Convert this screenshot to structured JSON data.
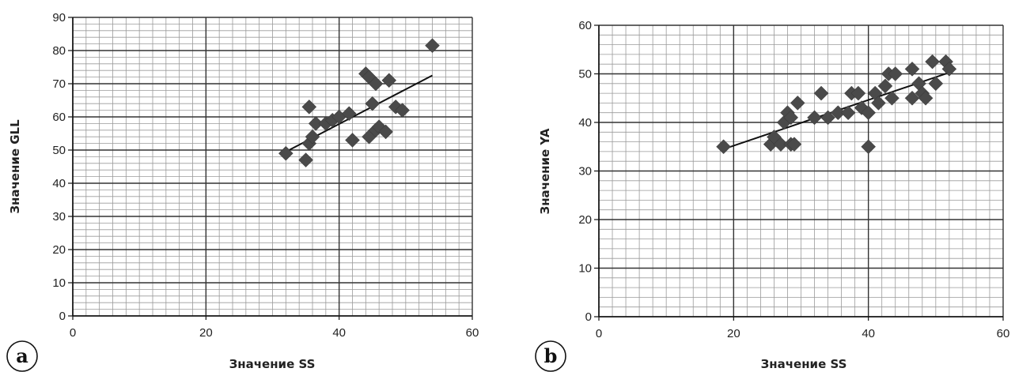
{
  "chart_data": [
    {
      "type": "scatter",
      "panel_label": "a",
      "xlabel": "Значение SS",
      "ylabel": "Значение GLL",
      "xlim": [
        0,
        60
      ],
      "ylim": [
        0,
        90
      ],
      "x_ticks": [
        0,
        20,
        40,
        60
      ],
      "y_ticks": [
        0,
        10,
        20,
        30,
        40,
        50,
        60,
        70,
        80,
        90
      ],
      "grid": true,
      "marker": "diamond",
      "points": [
        [
          32,
          49
        ],
        [
          35,
          47
        ],
        [
          35.5,
          52
        ],
        [
          35.5,
          63
        ],
        [
          36,
          54
        ],
        [
          36.5,
          58
        ],
        [
          38,
          58
        ],
        [
          39,
          59
        ],
        [
          40,
          60
        ],
        [
          41.5,
          61
        ],
        [
          42,
          53
        ],
        [
          44,
          73
        ],
        [
          44.5,
          72
        ],
        [
          44.5,
          54
        ],
        [
          45,
          64
        ],
        [
          45.5,
          70
        ],
        [
          45.5,
          56
        ],
        [
          46,
          57
        ],
        [
          47,
          55.5
        ],
        [
          47.5,
          71
        ],
        [
          48.5,
          63
        ],
        [
          49.5,
          62
        ],
        [
          54,
          81.5
        ]
      ],
      "trendline": [
        [
          32,
          49.5
        ],
        [
          54,
          72.5
        ]
      ]
    },
    {
      "type": "scatter",
      "panel_label": "b",
      "xlabel": "Значение SS",
      "ylabel": "Значение YA",
      "xlim": [
        0,
        60
      ],
      "ylim": [
        0,
        60
      ],
      "x_ticks": [
        0,
        20,
        40,
        60
      ],
      "y_ticks": [
        0,
        10,
        20,
        30,
        40,
        50,
        60
      ],
      "grid": true,
      "marker": "diamond",
      "points": [
        [
          18.5,
          35
        ],
        [
          25.5,
          35.5
        ],
        [
          26,
          37
        ],
        [
          27,
          35.5
        ],
        [
          27.5,
          40
        ],
        [
          28,
          42
        ],
        [
          28.5,
          35.5
        ],
        [
          28.5,
          41
        ],
        [
          29,
          35.5
        ],
        [
          29.5,
          44
        ],
        [
          32,
          41
        ],
        [
          33,
          46
        ],
        [
          34,
          41
        ],
        [
          35.5,
          42
        ],
        [
          37,
          42
        ],
        [
          37.5,
          46
        ],
        [
          38.5,
          46
        ],
        [
          39,
          43
        ],
        [
          40,
          42
        ],
        [
          40,
          35
        ],
        [
          41,
          46
        ],
        [
          41.5,
          44
        ],
        [
          42.5,
          47.5
        ],
        [
          43,
          50
        ],
        [
          43.5,
          45
        ],
        [
          44,
          50
        ],
        [
          46.5,
          51
        ],
        [
          46.5,
          45
        ],
        [
          47.5,
          48
        ],
        [
          48,
          46
        ],
        [
          48.5,
          45
        ],
        [
          49.5,
          52.5
        ],
        [
          50,
          48
        ],
        [
          51.5,
          52.5
        ],
        [
          52,
          51
        ]
      ],
      "trendline": [
        [
          18.5,
          34.5
        ],
        [
          52.5,
          50.5
        ]
      ]
    }
  ]
}
